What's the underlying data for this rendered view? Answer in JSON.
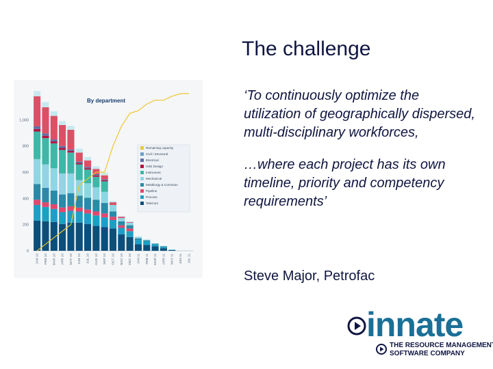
{
  "slide": {
    "title": "The challenge",
    "quote_part1": "‘To continuously optimize the utilization of geographically dispersed, multi-disciplinary workforces,",
    "quote_part2": "…where each project has its own timeline, priority and competency requirements’",
    "author": "Steve Major, Petrofac"
  },
  "logo": {
    "word": "innate",
    "tagline_line1": "THE RESOURCE MANAGEMENT",
    "tagline_line2": "SOFTWARE COMPANY",
    "color": "#1a6f96"
  },
  "chart_data": {
    "type": "bar",
    "stacked": true,
    "title": "By department",
    "ylim": [
      0,
      1200
    ],
    "yticks": [
      0,
      200,
      400,
      600,
      800,
      1000
    ],
    "ytick_labels": [
      "0",
      "200",
      "400",
      "600",
      "800",
      "1,000"
    ],
    "categories": [
      "JAN 10",
      "FEB 10",
      "MAR 10",
      "APR 10",
      "MAY 10",
      "JUN 10",
      "JUL 10",
      "AUG 10",
      "SEP 10",
      "OCT 10",
      "NOV 10",
      "DEC 10",
      "JAN 11",
      "FEB 11",
      "MAR 11",
      "APR 11",
      "MAY 11",
      "JUN 11",
      "JUL 11"
    ],
    "legend_position": "right",
    "series": [
      {
        "name": "TeleCom",
        "color": "#0b4f7a",
        "values": [
          230,
          225,
          220,
          205,
          215,
          215,
          205,
          190,
          180,
          170,
          125,
          105,
          50,
          45,
          35,
          20,
          5,
          0,
          0
        ]
      },
      {
        "name": "Process",
        "color": "#1c9fc4",
        "values": [
          120,
          110,
          100,
          90,
          90,
          85,
          80,
          80,
          75,
          65,
          50,
          45,
          30,
          25,
          15,
          10,
          3,
          0,
          0
        ]
      },
      {
        "name": "Pipeline",
        "color": "#e0486d",
        "values": [
          40,
          35,
          35,
          35,
          35,
          30,
          30,
          30,
          30,
          25,
          20,
          20,
          0,
          0,
          0,
          0,
          0,
          0,
          0
        ]
      },
      {
        "name": "Metallurgy & Corrosion",
        "color": "#2a8aa8",
        "values": [
          120,
          110,
          105,
          100,
          100,
          90,
          90,
          90,
          80,
          40,
          30,
          25,
          15,
          10,
          5,
          5,
          0,
          0,
          0
        ]
      },
      {
        "name": "Mechanical",
        "color": "#8fd5e3",
        "values": [
          190,
          180,
          170,
          160,
          150,
          120,
          110,
          95,
          85,
          50,
          25,
          20,
          10,
          5,
          0,
          0,
          0,
          0,
          0
        ]
      },
      {
        "name": "Instrument",
        "color": "#3db8a8",
        "values": [
          210,
          200,
          190,
          180,
          160,
          120,
          105,
          80,
          80,
          0,
          0,
          0,
          0,
          0,
          0,
          0,
          0,
          0,
          0
        ]
      },
      {
        "name": "HSE Design",
        "color": "#b01540",
        "values": [
          20,
          18,
          15,
          15,
          12,
          10,
          10,
          10,
          8,
          0,
          0,
          0,
          0,
          0,
          0,
          0,
          0,
          0,
          0
        ]
      },
      {
        "name": "Electrical",
        "color": "#5f6fa3",
        "values": [
          20,
          18,
          15,
          15,
          12,
          10,
          10,
          10,
          8,
          0,
          0,
          0,
          0,
          0,
          0,
          0,
          0,
          0,
          0
        ]
      },
      {
        "name": "Civil / Structural",
        "color": "#6aa0c8",
        "values": [
          0,
          0,
          0,
          0,
          0,
          0,
          0,
          0,
          0,
          0,
          0,
          0,
          0,
          0,
          0,
          0,
          0,
          0,
          0
        ]
      },
      {
        "name": "Remaining capacity",
        "color": "#e8c93d",
        "values": [
          0,
          0,
          0,
          0,
          0,
          0,
          0,
          0,
          0,
          0,
          0,
          0,
          0,
          0,
          0,
          0,
          0,
          0,
          0
        ]
      },
      {
        "name": "Total",
        "color": "#dc5066",
        "values": [
          230,
          200,
          180,
          160,
          150,
          70,
          50,
          40,
          30,
          20,
          10,
          5,
          0,
          0,
          0,
          0,
          0,
          0,
          0
        ]
      },
      {
        "name": "Top",
        "color": "#c8e8ef",
        "values": [
          40,
          40,
          35,
          30,
          30,
          30,
          25,
          20,
          20,
          10,
          5,
          5,
          5,
          0,
          0,
          0,
          0,
          0,
          0
        ]
      }
    ],
    "line": {
      "name": "Remaining capacity",
      "color": "#f0c52c",
      "values": [
        0,
        50,
        100,
        150,
        200,
        500,
        550,
        600,
        600,
        800,
        950,
        1050,
        1070,
        1120,
        1150,
        1150,
        1180,
        1200,
        1200
      ]
    }
  }
}
